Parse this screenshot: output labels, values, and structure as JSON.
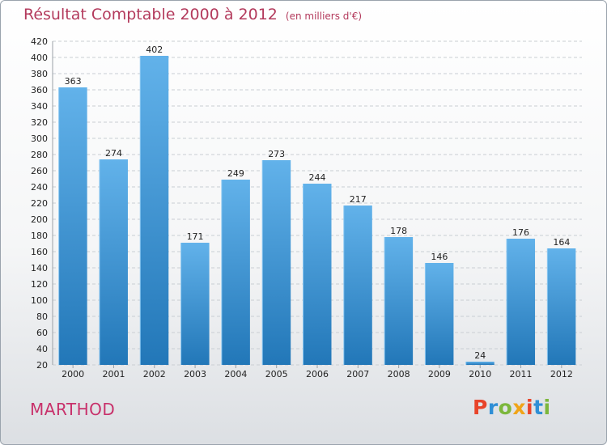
{
  "header": {
    "title": "Résultat Comptable 2000 à 2012",
    "unit_note": "(en milliers d'€)"
  },
  "commune_name": "MARTHOD",
  "logo": {
    "text": "Proxiti",
    "letter_colors": [
      "#e8442a",
      "#2f8fd6",
      "#7cb73c",
      "#f0a418",
      "#e8442a",
      "#2f8fd6",
      "#7cb73c"
    ]
  },
  "colors": {
    "bar_top": "#62b2ea",
    "bar_bottom": "#2277b8",
    "grid": "#c9ced3",
    "axis_text": "#222222",
    "title": "#b33a5c",
    "commune": "#c8316b"
  },
  "chart_data": {
    "type": "bar",
    "categories": [
      "2000",
      "2001",
      "2002",
      "2003",
      "2004",
      "2005",
      "2006",
      "2007",
      "2008",
      "2009",
      "2010",
      "2011",
      "2012"
    ],
    "values": [
      363,
      274,
      402,
      171,
      249,
      273,
      244,
      217,
      178,
      146,
      24,
      176,
      164
    ],
    "title": "Résultat Comptable 2000 à 2012",
    "subtitle": "(en milliers d'€)",
    "xlabel": "",
    "ylabel": "",
    "ylim": [
      20,
      420
    ],
    "ytick_step": 20,
    "grid": true,
    "legend": "none",
    "data_labels": true
  }
}
